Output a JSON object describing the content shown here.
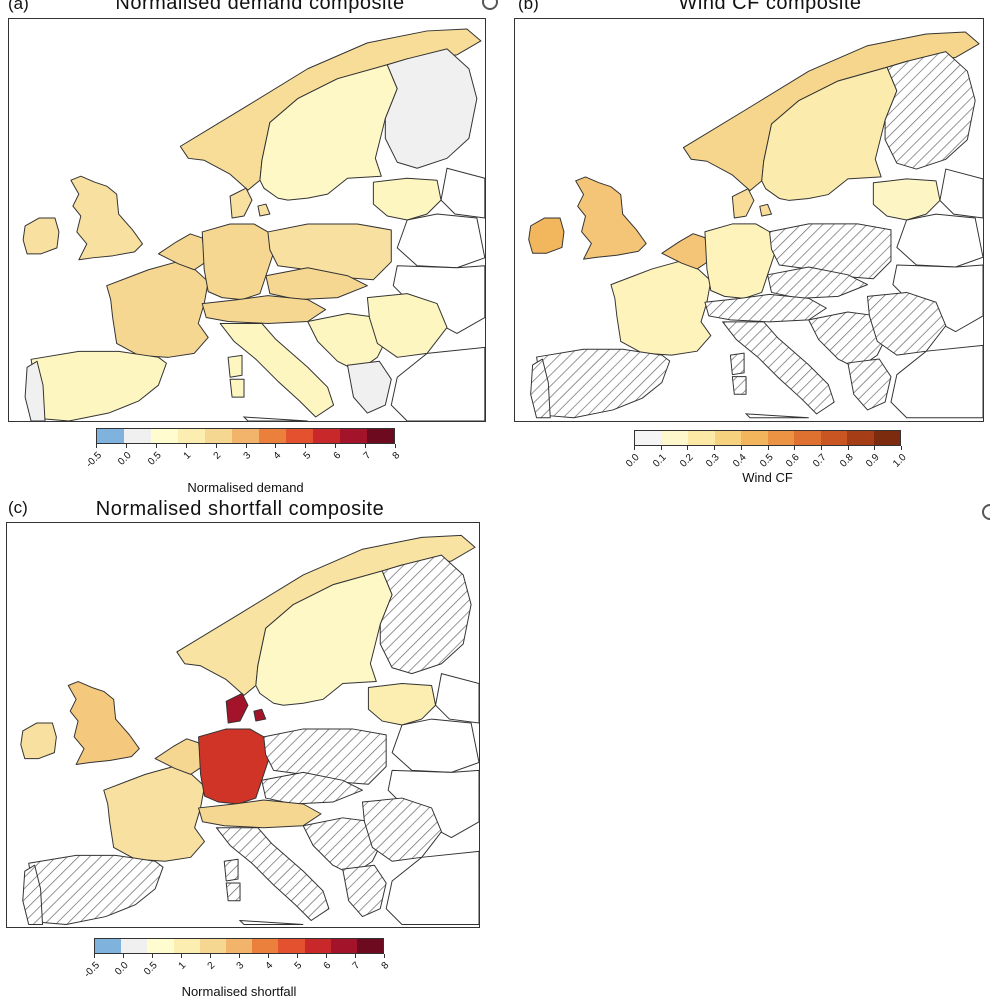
{
  "panels": [
    {
      "letter": "(a)",
      "title": "Normalised demand composite",
      "colorbar": {
        "colors": [
          "#7fb2dc",
          "#f0f0f0",
          "#fffccf",
          "#fbeeb0",
          "#f5d791",
          "#f2b46a",
          "#eb7f3c",
          "#e4512e",
          "#c9282a",
          "#a3142a",
          "#6e0a1f"
        ],
        "ticks": [
          "-0.5",
          "0.0",
          "0.5",
          "1",
          "2",
          "3",
          "4",
          "5",
          "6",
          "7",
          "8"
        ],
        "label": "Normalised demand"
      },
      "fills": {
        "norway": "#f7dd98",
        "sweden": "#fdf8c6",
        "finland": "#f0f0f0",
        "baltics": "#fdf6c0",
        "uk": "#f8e0a0",
        "ireland": "#f8e0a0",
        "france": "#f6d792",
        "spain": "#fdf6c0",
        "portugal": "#f0f0f0",
        "germany": "#f6d792",
        "benelux": "#f6d792",
        "denmark": "#f8e0a0",
        "poland": "#f8e0a0",
        "czech": "#f6d792",
        "alps": "#f6d792",
        "italy": "#fdf6c0",
        "balkans": "#fdf6c0",
        "romania": "#fdf6c0",
        "greece": "#f0f0f0",
        "belarus": "#ffffff",
        "ukraine": "#ffffff"
      }
    },
    {
      "letter": "(b)",
      "title": "Wind CF composite",
      "colorbar": {
        "colors": [
          "#f5f5f5",
          "#fff7cc",
          "#fbe9a5",
          "#f6d27f",
          "#f2b55c",
          "#eb9343",
          "#de7030",
          "#c95622",
          "#a53e16",
          "#7d2b0f"
        ],
        "ticks": [
          "0.0",
          "0.1",
          "0.2",
          "0.3",
          "0.4",
          "0.5",
          "0.6",
          "0.7",
          "0.8",
          "0.9",
          "1.0"
        ],
        "label": "Wind CF"
      },
      "fills": {
        "norway": "#f6d68d",
        "sweden": "#fbecad",
        "finland": "hatch",
        "baltics": "#fdf6c4",
        "uk": "#f4c477",
        "ireland": "#f2b65c",
        "france": "#fdf3bb",
        "spain": "hatch",
        "portugal": "hatch",
        "germany": "#fdf3bb",
        "benelux": "#f4c477",
        "denmark": "#f8dc98",
        "poland": "hatch",
        "czech": "hatch",
        "alps": "hatch",
        "italy": "hatch",
        "balkans": "hatch",
        "romania": "hatch",
        "greece": "hatch",
        "belarus": "#ffffff",
        "ukraine": "#ffffff"
      }
    },
    {
      "letter": "(c)",
      "title": "Normalised shortfall composite",
      "colorbar": {
        "colors": [
          "#7fb2dc",
          "#f0f0f0",
          "#fffccf",
          "#fbeeb0",
          "#f5d791",
          "#f2b46a",
          "#eb7f3c",
          "#e4512e",
          "#c9282a",
          "#a3142a",
          "#6e0a1f"
        ],
        "ticks": [
          "-0.5",
          "0.0",
          "0.5",
          "1",
          "2",
          "3",
          "4",
          "5",
          "6",
          "7",
          "8"
        ],
        "label": "Normalised shortfall"
      },
      "fills": {
        "norway": "#f8e3a2",
        "sweden": "#fdf8c6",
        "finland": "hatch",
        "baltics": "#fbeeb0",
        "uk": "#f4c97e",
        "ireland": "#f8e0a0",
        "france": "#f8e0a0",
        "spain": "hatch",
        "portugal": "hatch",
        "germany": "#cf3427",
        "benelux": "#f6d792",
        "denmark": "#a3142a",
        "poland": "hatch",
        "czech": "hatch",
        "alps": "#f6d792",
        "italy": "hatch",
        "balkans": "hatch",
        "romania": "hatch",
        "greece": "hatch",
        "belarus": "#ffffff",
        "ukraine": "#ffffff"
      }
    }
  ]
}
